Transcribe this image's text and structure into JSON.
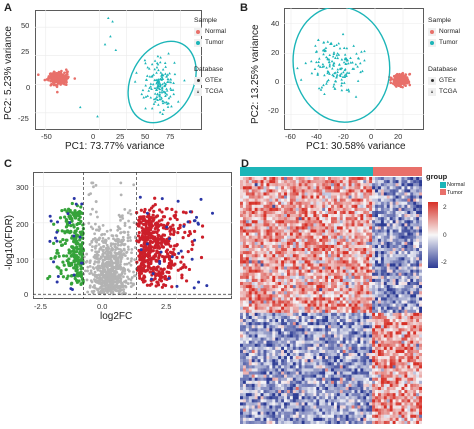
{
  "colors": {
    "normal": "#e8706a",
    "tumor": "#1cb5b8",
    "up": "#cc1f2a",
    "down": "#35a33a",
    "blue": "#2a36a6",
    "grey": "#b3b3b3",
    "heat_high": "#d73027",
    "heat_low": "#2c3b94"
  },
  "panelA": {
    "letter": "A",
    "xlabel": "PC1: 73.77% variance",
    "ylabel": "PC2: 5.23% variance",
    "xticks": [
      "-50",
      "0",
      "25",
      "50",
      "75"
    ],
    "yticks": [
      "50",
      "25",
      "0",
      "-25"
    ],
    "legend_sample": {
      "title": "Sample",
      "items": [
        "Normal",
        "Tumor"
      ]
    },
    "legend_database": {
      "title": "Database",
      "items": [
        "GTEx",
        "TCGA"
      ]
    }
  },
  "panelB": {
    "letter": "B",
    "xlabel": "PC1: 30.58% variance",
    "ylabel": "PC2: 13.25% variance",
    "xticks": [
      "-60",
      "-40",
      "-20",
      "0",
      "20"
    ],
    "yticks": [
      "40",
      "20",
      "0",
      "-20"
    ],
    "legend_sample": {
      "title": "Sample",
      "items": [
        "Normal",
        "Tumor"
      ]
    },
    "legend_database": {
      "title": "Database",
      "items": [
        "GTEx",
        "TCGA"
      ]
    }
  },
  "panelC": {
    "letter": "C",
    "xlabel": "log2FC",
    "ylabel": "-log10(FDR)",
    "xticks": [
      "-2.5",
      "0.0",
      "2.5"
    ],
    "yticks": [
      "300",
      "200",
      "100",
      "0"
    ]
  },
  "panelD": {
    "letter": "D",
    "legend_group": {
      "title": "group",
      "items": [
        "Normal",
        "Tumor"
      ]
    },
    "colorbar_ticks": [
      "2",
      "0",
      "-2"
    ]
  },
  "chart_data": [
    {
      "type": "scatter",
      "title": "",
      "xlabel": "PC1: 73.77% variance",
      "ylabel": "PC2: 5.23% variance",
      "xlim": [
        -60,
        95
      ],
      "ylim": [
        -40,
        65
      ],
      "series": [
        {
          "name": "Normal",
          "clusters": [
            {
              "center": [
                -38,
                5
              ],
              "spread": [
                10,
                6
              ],
              "count": 220
            }
          ]
        },
        {
          "name": "Tumor",
          "clusters": [
            {
              "center": [
                55,
                0
              ],
              "spread": [
                15,
                18
              ],
              "count": 150
            }
          ]
        }
      ]
    },
    {
      "type": "scatter",
      "title": "",
      "xlabel": "PC1: 30.58% variance",
      "ylabel": "PC2: 13.25% variance",
      "xlim": [
        -65,
        35
      ],
      "ylim": [
        -30,
        50
      ],
      "series": [
        {
          "name": "Normal",
          "clusters": [
            {
              "center": [
                18,
                3
              ],
              "spread": [
                6,
                4
              ],
              "count": 200
            }
          ]
        },
        {
          "name": "Tumor",
          "clusters": [
            {
              "center": [
                -28,
                12
              ],
              "spread": [
                14,
                14
              ],
              "count": 150
            }
          ]
        }
      ]
    },
    {
      "type": "scatter",
      "title": "",
      "xlabel": "log2FC",
      "ylabel": "-log10(FDR)",
      "xlim": [
        -2.9,
        4.6
      ],
      "ylim": [
        -10,
        340
      ],
      "thresholds": {
        "log2fc": [
          -1,
          1
        ]
      },
      "series": [
        {
          "name": "",
          "clusters": [
            {
              "x_range": [
                -1,
                1
              ],
              "y_range": [
                0,
                300
              ],
              "count": 700
            }
          ]
        },
        {
          "name": "",
          "clusters": [
            {
              "x_range": [
                1,
                4
              ],
              "y_range": [
                20,
                280
              ],
              "count": 500
            }
          ]
        },
        {
          "name": "",
          "clusters": [
            {
              "x_range": [
                -2.3,
                -1
              ],
              "y_range": [
                20,
                300
              ],
              "count": 250
            }
          ]
        }
      ]
    },
    {
      "type": "heatmap",
      "title": "",
      "groups": [
        {
          "name": "Tumor",
          "fraction": 0.73
        },
        {
          "name": "Normal",
          "fraction": 0.27
        }
      ],
      "row_blocks": [
        {
          "fraction": 0.55,
          "tumor_level": 0.55,
          "normal_level": -0.6
        },
        {
          "fraction": 0.45,
          "tumor_level": -0.55,
          "normal_level": 0.6
        }
      ],
      "color_range": [
        -3,
        3
      ]
    }
  ]
}
